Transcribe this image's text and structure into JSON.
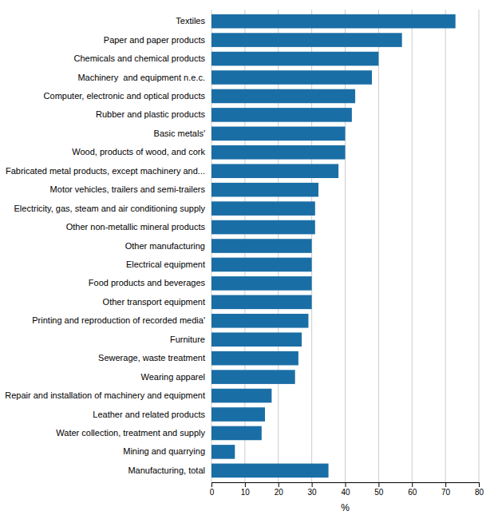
{
  "chart_data": {
    "type": "bar",
    "orientation": "horizontal",
    "categories": [
      "Manufacturing, total",
      "Mining and quarrying",
      "Water collection, treatment and supply",
      "Leather and related products",
      "Repair and installation of machinery and equipment",
      "Wearing apparel",
      "Sewerage, waste treatment",
      "Furniture",
      "Printing and reproduction of recorded media'",
      "Other transport equipment",
      "Food products and beverages",
      "Electrical equipment",
      "Other manufacturing",
      "Other non-metallic mineral products",
      "Electricity, gas, steam and air conditioning supply",
      "Motor vehicles, trailers and semi-trailers",
      "Fabricated metal products, except machinery and...",
      "Wood, products of wood, and cork",
      "Basic metals'",
      "Rubber and plastic products",
      "Computer, electronic and optical products",
      "Machinery  and equipment n.e.c.",
      "Chemicals and chemical products",
      "Paper and paper products",
      "Textiles"
    ],
    "values": [
      35,
      7,
      15,
      16,
      18,
      25,
      26,
      27,
      29,
      30,
      30,
      30,
      30,
      31,
      31,
      32,
      38,
      40,
      40,
      42,
      43,
      48,
      50,
      57,
      73
    ],
    "color": "#1a6ea6",
    "xlabel": "%",
    "xlim": [
      0,
      80
    ],
    "xticks": [
      0,
      10,
      20,
      30,
      40,
      50,
      60,
      70,
      80
    ],
    "grid": true
  }
}
